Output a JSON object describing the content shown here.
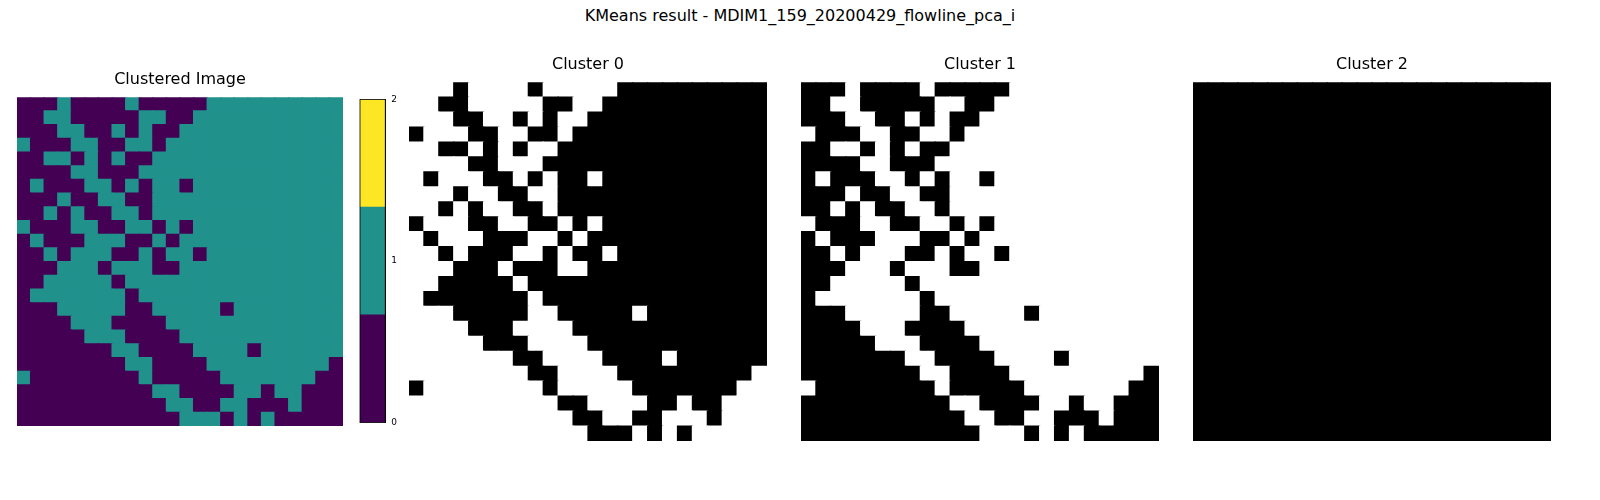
{
  "title": "KMeans result - MDIM1_159_20200429_flowline_pca_i",
  "chart_data": [
    {
      "type": "heatmap",
      "title": "Clustered Image",
      "tick_labels": false,
      "colors": [
        "#440154",
        "#21918c",
        "#fde725"
      ],
      "colorbar": {
        "range": [
          0,
          2
        ],
        "ticks": [
          0,
          1,
          2
        ]
      },
      "cells": [
        [
          0,
          0,
          0,
          1,
          0,
          0,
          0,
          0,
          1,
          0,
          0,
          0,
          0,
          0,
          1,
          1,
          1,
          1,
          1,
          1,
          1,
          1,
          1,
          1
        ],
        [
          0,
          0,
          1,
          1,
          0,
          0,
          0,
          0,
          0,
          1,
          1,
          0,
          0,
          1,
          1,
          1,
          1,
          1,
          1,
          1,
          1,
          1,
          1,
          1
        ],
        [
          0,
          0,
          0,
          1,
          1,
          0,
          0,
          1,
          0,
          1,
          0,
          0,
          1,
          1,
          1,
          1,
          1,
          1,
          1,
          1,
          1,
          1,
          1,
          1
        ],
        [
          1,
          0,
          0,
          0,
          1,
          1,
          0,
          0,
          1,
          1,
          0,
          1,
          1,
          1,
          1,
          1,
          1,
          1,
          1,
          1,
          1,
          1,
          1,
          1
        ],
        [
          0,
          0,
          1,
          1,
          0,
          1,
          0,
          1,
          0,
          0,
          1,
          1,
          1,
          1,
          1,
          1,
          1,
          1,
          1,
          1,
          1,
          1,
          1,
          1
        ],
        [
          0,
          0,
          0,
          0,
          1,
          1,
          0,
          0,
          0,
          1,
          1,
          1,
          1,
          1,
          1,
          1,
          1,
          1,
          1,
          1,
          1,
          1,
          1,
          1
        ],
        [
          0,
          1,
          0,
          0,
          0,
          1,
          1,
          0,
          1,
          0,
          1,
          1,
          0,
          1,
          1,
          1,
          1,
          1,
          1,
          1,
          1,
          1,
          1,
          1
        ],
        [
          0,
          0,
          0,
          1,
          0,
          0,
          1,
          1,
          0,
          0,
          1,
          1,
          1,
          1,
          1,
          1,
          1,
          1,
          1,
          1,
          1,
          1,
          1,
          1
        ],
        [
          0,
          0,
          1,
          0,
          1,
          0,
          0,
          1,
          1,
          0,
          1,
          1,
          1,
          1,
          1,
          1,
          1,
          1,
          1,
          1,
          1,
          1,
          1,
          1
        ],
        [
          1,
          0,
          0,
          0,
          1,
          1,
          0,
          0,
          1,
          1,
          0,
          1,
          0,
          1,
          1,
          1,
          1,
          1,
          1,
          1,
          1,
          1,
          1,
          1
        ],
        [
          0,
          1,
          0,
          0,
          0,
          1,
          1,
          1,
          0,
          0,
          1,
          0,
          1,
          1,
          1,
          1,
          1,
          1,
          1,
          1,
          1,
          1,
          1,
          1
        ],
        [
          0,
          0,
          1,
          0,
          1,
          1,
          1,
          0,
          0,
          1,
          0,
          1,
          1,
          0,
          1,
          1,
          1,
          1,
          1,
          1,
          1,
          1,
          1,
          1
        ],
        [
          0,
          0,
          0,
          1,
          1,
          1,
          0,
          1,
          1,
          1,
          0,
          0,
          1,
          1,
          1,
          1,
          1,
          1,
          1,
          1,
          1,
          1,
          1,
          1
        ],
        [
          0,
          0,
          1,
          1,
          1,
          1,
          1,
          0,
          1,
          1,
          1,
          1,
          1,
          1,
          1,
          1,
          1,
          1,
          1,
          1,
          1,
          1,
          1,
          1
        ],
        [
          0,
          1,
          1,
          1,
          1,
          1,
          1,
          1,
          0,
          1,
          1,
          1,
          1,
          1,
          1,
          1,
          1,
          1,
          1,
          1,
          1,
          1,
          1,
          1
        ],
        [
          0,
          0,
          0,
          1,
          1,
          1,
          1,
          1,
          0,
          0,
          1,
          1,
          1,
          1,
          1,
          0,
          1,
          1,
          1,
          1,
          1,
          1,
          1,
          1
        ],
        [
          0,
          0,
          0,
          0,
          1,
          1,
          1,
          0,
          0,
          0,
          0,
          1,
          1,
          1,
          1,
          1,
          1,
          1,
          1,
          1,
          1,
          1,
          1,
          1
        ],
        [
          0,
          0,
          0,
          0,
          0,
          1,
          1,
          1,
          0,
          0,
          0,
          0,
          1,
          1,
          1,
          1,
          1,
          1,
          1,
          1,
          1,
          1,
          1,
          1
        ],
        [
          0,
          0,
          0,
          0,
          0,
          0,
          0,
          1,
          1,
          0,
          0,
          0,
          0,
          1,
          1,
          1,
          1,
          0,
          1,
          1,
          1,
          1,
          1,
          1
        ],
        [
          0,
          0,
          0,
          0,
          0,
          0,
          0,
          0,
          1,
          1,
          0,
          0,
          0,
          0,
          1,
          1,
          1,
          1,
          1,
          1,
          1,
          1,
          1,
          0
        ],
        [
          1,
          0,
          0,
          0,
          0,
          0,
          0,
          0,
          0,
          1,
          0,
          0,
          0,
          0,
          0,
          1,
          1,
          1,
          1,
          1,
          1,
          1,
          0,
          0
        ],
        [
          0,
          0,
          0,
          0,
          0,
          0,
          0,
          0,
          0,
          0,
          1,
          1,
          0,
          0,
          0,
          0,
          1,
          1,
          0,
          1,
          1,
          0,
          0,
          0
        ],
        [
          0,
          0,
          0,
          0,
          0,
          0,
          0,
          0,
          0,
          0,
          0,
          1,
          1,
          0,
          0,
          1,
          1,
          0,
          0,
          0,
          1,
          0,
          0,
          0
        ],
        [
          0,
          0,
          0,
          0,
          0,
          0,
          0,
          0,
          0,
          0,
          0,
          0,
          1,
          1,
          1,
          0,
          1,
          0,
          1,
          0,
          0,
          0,
          0,
          0
        ]
      ]
    },
    {
      "type": "mask",
      "title": "Cluster 0",
      "cluster": 0,
      "tick_labels": false
    },
    {
      "type": "mask",
      "title": "Cluster 1",
      "cluster": 1,
      "tick_labels": false
    },
    {
      "type": "mask",
      "title": "Cluster 2",
      "cluster": 2,
      "tick_labels": false
    }
  ]
}
